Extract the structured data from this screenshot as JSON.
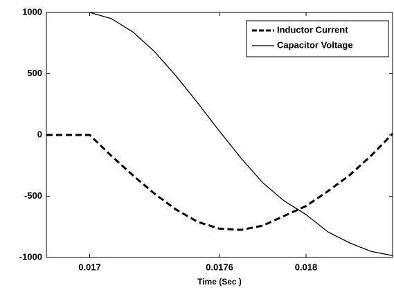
{
  "chart_data": {
    "type": "line",
    "xlabel": "Time (Sec )",
    "x": [
      0.0168,
      0.017,
      0.0171,
      0.0172,
      0.0173,
      0.0174,
      0.0175,
      0.0176,
      0.0177,
      0.0178,
      0.0179,
      0.018,
      0.0181,
      0.0182,
      0.0183,
      0.0184
    ],
    "series": [
      {
        "name": "Inductor Current",
        "color": "#000000",
        "dash": true,
        "values": [
          0,
          0,
          -170,
          -330,
          -480,
          -610,
          -710,
          -765,
          -775,
          -740,
          -660,
          -580,
          -460,
          -330,
          -170,
          10
        ]
      },
      {
        "name": "Capacitor Voltage",
        "color": "#000000",
        "dash": false,
        "values": [
          null,
          1000,
          950,
          840,
          680,
          480,
          260,
          30,
          -190,
          -390,
          -540,
          -650,
          -790,
          -880,
          -950,
          -985
        ]
      }
    ],
    "xlim": [
      0.0168,
      0.0184
    ],
    "xticks": [
      0.017,
      0.0176,
      0.018
    ],
    "ylim": [
      -1000,
      1000
    ],
    "yticks": [
      -1000,
      -500,
      0,
      500,
      1000
    ],
    "legend": "upper right"
  }
}
